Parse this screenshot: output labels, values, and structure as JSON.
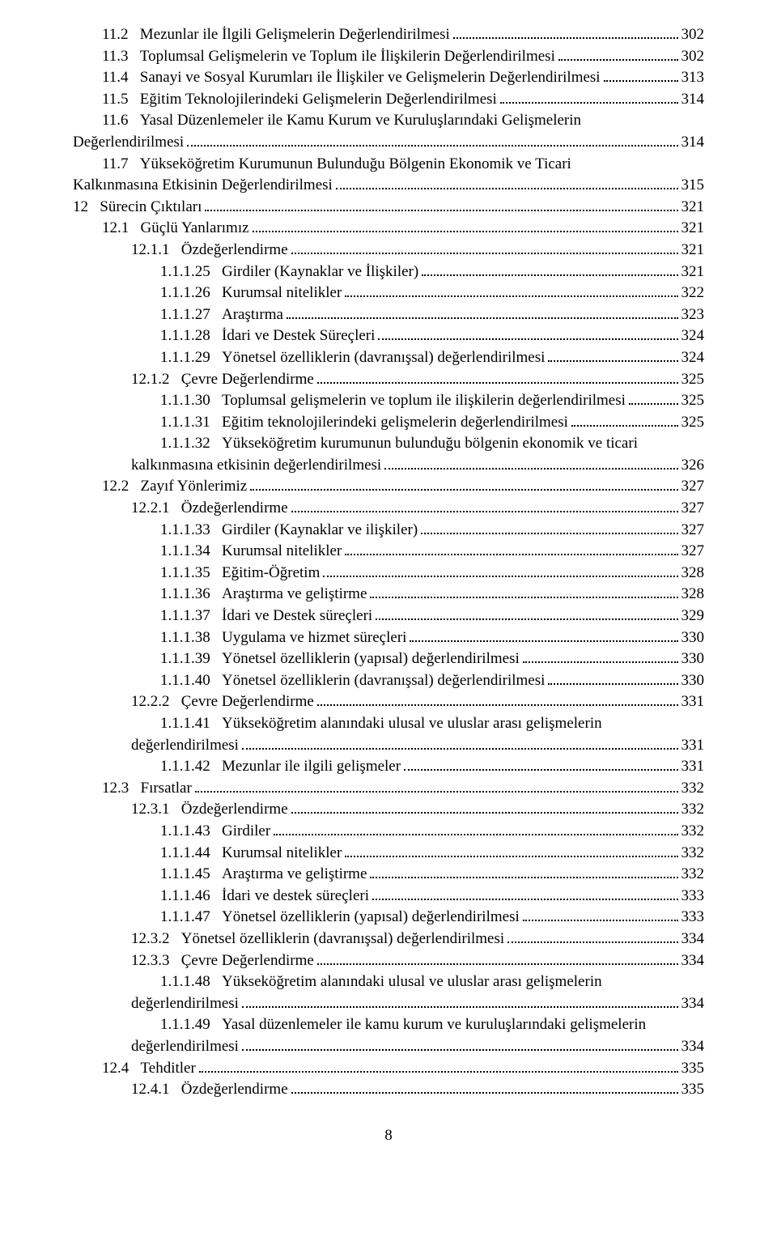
{
  "pageNumber": "8",
  "entries": [
    {
      "indent": 1,
      "num": "11.2",
      "title": "Mezunlar ile İlgili Gelişmelerin Değerlendirilmesi",
      "page": "302"
    },
    {
      "indent": 1,
      "num": "11.3",
      "title": "Toplumsal Gelişmelerin ve Toplum ile İlişkilerin Değerlendirilmesi",
      "page": "302"
    },
    {
      "indent": 1,
      "num": "11.4",
      "title": "Sanayi ve Sosyal Kurumları ile İlişkiler ve Gelişmelerin Değerlendirilmesi",
      "page": "313",
      "wrap": true
    },
    {
      "indent": 1,
      "num": "11.5",
      "title": "Eğitim Teknolojilerindeki Gelişmelerin Değerlendirilmesi",
      "page": "314"
    },
    {
      "indent": 1,
      "num": "11.6",
      "title": "Yasal Düzenlemeler ile Kamu Kurum ve Kuruluşlarındaki Gelişmelerin",
      "cont": "Değerlendirilmesi",
      "page": "314",
      "hanging": true
    },
    {
      "indent": 1,
      "num": "11.7",
      "title": "Yükseköğretim Kurumunun Bulunduğu Bölgenin Ekonomik ve Ticari",
      "cont": "Kalkınmasına Etkisinin Değerlendirilmesi",
      "page": "315",
      "hanging": true
    },
    {
      "indent": 0,
      "num": "12",
      "title": "Sürecin Çıktıları",
      "page": "321"
    },
    {
      "indent": 1,
      "num": "12.1",
      "title": "Güçlü Yanlarımız",
      "page": "321"
    },
    {
      "indent": 2,
      "num": "12.1.1",
      "title": "Özdeğerlendirme",
      "page": "321"
    },
    {
      "indent": 3,
      "num": "1.1.1.25",
      "title": "Girdiler (Kaynaklar ve İlişkiler)",
      "page": "321"
    },
    {
      "indent": 3,
      "num": "1.1.1.26",
      "title": "Kurumsal nitelikler",
      "page": "322"
    },
    {
      "indent": 3,
      "num": "1.1.1.27",
      "title": "Araştırma",
      "page": "323"
    },
    {
      "indent": 3,
      "num": "1.1.1.28",
      "title": "İdari ve Destek Süreçleri",
      "page": "324"
    },
    {
      "indent": 3,
      "num": "1.1.1.29",
      "title": "Yönetsel özelliklerin (davranışsal) değerlendirilmesi",
      "page": "324"
    },
    {
      "indent": 2,
      "num": "12.1.2",
      "title": "Çevre Değerlendirme",
      "page": "325"
    },
    {
      "indent": 3,
      "num": "1.1.1.30",
      "title": "Toplumsal gelişmelerin ve toplum ile ilişkilerin değerlendirilmesi",
      "page": "325"
    },
    {
      "indent": 3,
      "num": "1.1.1.31",
      "title": "Eğitim teknolojilerindeki gelişmelerin değerlendirilmesi",
      "page": "325"
    },
    {
      "indent": 3,
      "num": "1.1.1.32",
      "title": "Yükseköğretim kurumunun bulunduğu bölgenin ekonomik ve ticari",
      "cont": "kalkınmasına etkisinin değerlendirilmesi",
      "page": "326",
      "hanging": true,
      "contIndent": 2
    },
    {
      "indent": 1,
      "num": "12.2",
      "title": "Zayıf Yönlerimiz",
      "page": "327"
    },
    {
      "indent": 2,
      "num": "12.2.1",
      "title": "Özdeğerlendirme",
      "page": "327"
    },
    {
      "indent": 3,
      "num": "1.1.1.33",
      "title": "Girdiler (Kaynaklar ve ilişkiler)",
      "page": "327"
    },
    {
      "indent": 3,
      "num": "1.1.1.34",
      "title": "Kurumsal nitelikler",
      "page": "327"
    },
    {
      "indent": 3,
      "num": "1.1.1.35",
      "title": "Eğitim-Öğretim",
      "page": "328"
    },
    {
      "indent": 3,
      "num": "1.1.1.36",
      "title": "Araştırma ve geliştirme",
      "page": "328"
    },
    {
      "indent": 3,
      "num": "1.1.1.37",
      "title": "İdari ve Destek süreçleri",
      "page": "329"
    },
    {
      "indent": 3,
      "num": "1.1.1.38",
      "title": "Uygulama ve hizmet süreçleri",
      "page": "330"
    },
    {
      "indent": 3,
      "num": "1.1.1.39",
      "title": "Yönetsel özelliklerin (yapısal) değerlendirilmesi",
      "page": "330"
    },
    {
      "indent": 3,
      "num": "1.1.1.40",
      "title": "Yönetsel özelliklerin (davranışsal) değerlendirilmesi",
      "page": "330"
    },
    {
      "indent": 2,
      "num": "12.2.2",
      "title": "Çevre Değerlendirme",
      "page": "331"
    },
    {
      "indent": 3,
      "num": "1.1.1.41",
      "title": "Yükseköğretim alanındaki ulusal ve uluslar arası gelişmelerin",
      "cont": "değerlendirilmesi",
      "page": "331",
      "hanging": true,
      "contIndent": 2
    },
    {
      "indent": 3,
      "num": "1.1.1.42",
      "title": "Mezunlar ile ilgili gelişmeler",
      "page": "331"
    },
    {
      "indent": 1,
      "num": "12.3",
      "title": "Fırsatlar",
      "page": "332"
    },
    {
      "indent": 2,
      "num": "12.3.1",
      "title": "Özdeğerlendirme",
      "page": "332"
    },
    {
      "indent": 3,
      "num": "1.1.1.43",
      "title": "Girdiler",
      "page": "332"
    },
    {
      "indent": 3,
      "num": "1.1.1.44",
      "title": "Kurumsal nitelikler",
      "page": "332"
    },
    {
      "indent": 3,
      "num": "1.1.1.45",
      "title": "Araştırma ve geliştirme",
      "page": "332"
    },
    {
      "indent": 3,
      "num": "1.1.1.46",
      "title": "İdari ve destek süreçleri",
      "page": "333"
    },
    {
      "indent": 3,
      "num": "1.1.1.47",
      "title": "Yönetsel özelliklerin (yapısal) değerlendirilmesi",
      "page": "333"
    },
    {
      "indent": 2,
      "num": "12.3.2",
      "title": "Yönetsel özelliklerin (davranışsal) değerlendirilmesi",
      "page": "334"
    },
    {
      "indent": 2,
      "num": "12.3.3",
      "title": "Çevre Değerlendirme",
      "page": "334"
    },
    {
      "indent": 3,
      "num": "1.1.1.48",
      "title": "Yükseköğretim alanındaki ulusal ve uluslar arası gelişmelerin",
      "cont": "değerlendirilmesi",
      "page": "334",
      "hanging": true,
      "contIndent": 2
    },
    {
      "indent": 3,
      "num": "1.1.1.49",
      "title": "Yasal düzenlemeler ile kamu kurum ve kuruluşlarındaki gelişmelerin",
      "cont": "değerlendirilmesi",
      "page": "334",
      "hanging": true,
      "contIndent": 2
    },
    {
      "indent": 1,
      "num": "12.4",
      "title": "Tehditler",
      "page": "335"
    },
    {
      "indent": 2,
      "num": "12.4.1",
      "title": "Özdeğerlendirme",
      "page": "335"
    }
  ]
}
